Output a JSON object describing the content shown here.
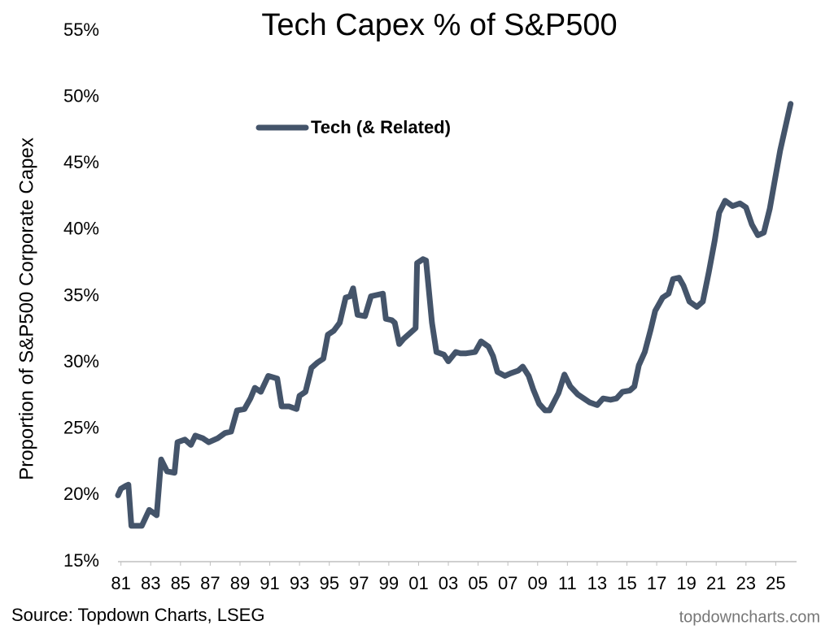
{
  "chart_data": {
    "type": "line",
    "title": "Tech Capex % of S&P500",
    "y_label": "Proportion of S&P500 Corporate Capex",
    "source": "Source: Topdown Charts, LSEG",
    "watermark": "topdowncharts.com",
    "legend_position": "upper left",
    "xlim": [
      1980.8,
      2026.4
    ],
    "ylim": [
      15,
      55
    ],
    "xticks": [
      {
        "value": 1981,
        "label": "81"
      },
      {
        "value": 1983,
        "label": "83"
      },
      {
        "value": 1985,
        "label": "85"
      },
      {
        "value": 1987,
        "label": "87"
      },
      {
        "value": 1989,
        "label": "89"
      },
      {
        "value": 1991,
        "label": "91"
      },
      {
        "value": 1993,
        "label": "93"
      },
      {
        "value": 1995,
        "label": "95"
      },
      {
        "value": 1997,
        "label": "97"
      },
      {
        "value": 1999,
        "label": "99"
      },
      {
        "value": 2001,
        "label": "01"
      },
      {
        "value": 2003,
        "label": "03"
      },
      {
        "value": 2005,
        "label": "05"
      },
      {
        "value": 2007,
        "label": "07"
      },
      {
        "value": 2009,
        "label": "09"
      },
      {
        "value": 2011,
        "label": "11"
      },
      {
        "value": 2013,
        "label": "13"
      },
      {
        "value": 2015,
        "label": "15"
      },
      {
        "value": 2017,
        "label": "17"
      },
      {
        "value": 2019,
        "label": "19"
      },
      {
        "value": 2021,
        "label": "21"
      },
      {
        "value": 2023,
        "label": "23"
      },
      {
        "value": 2025,
        "label": "25"
      }
    ],
    "yticks": [
      {
        "value": 15,
        "label": "15%"
      },
      {
        "value": 20,
        "label": "20%"
      },
      {
        "value": 25,
        "label": "25%"
      },
      {
        "value": 30,
        "label": "30%"
      },
      {
        "value": 35,
        "label": "35%"
      },
      {
        "value": 40,
        "label": "40%"
      },
      {
        "value": 45,
        "label": "45%"
      },
      {
        "value": 50,
        "label": "50%"
      },
      {
        "value": 55,
        "label": "55%"
      }
    ],
    "x": [
      1980.8,
      1981.0,
      1981.3,
      1981.5,
      1981.7,
      1982.4,
      1982.9,
      1983.4,
      1983.7,
      1984.1,
      1984.6,
      1984.8,
      1985.3,
      1985.7,
      1986.0,
      1986.5,
      1986.9,
      1987.5,
      1988.0,
      1988.4,
      1988.8,
      1989.3,
      1989.7,
      1990.0,
      1990.4,
      1990.9,
      1991.5,
      1991.8,
      1992.3,
      1992.8,
      1993.0,
      1993.4,
      1993.8,
      1994.2,
      1994.6,
      1994.9,
      1995.3,
      1995.7,
      1996.1,
      1996.4,
      1996.6,
      1996.9,
      1997.4,
      1997.8,
      1998.2,
      1998.6,
      1998.8,
      1999.2,
      1999.4,
      1999.7,
      2000.0,
      2000.4,
      2000.8,
      2000.9,
      2001.3,
      2001.5,
      2001.9,
      2002.2,
      2002.7,
      2003.0,
      2003.5,
      2003.8,
      2004.2,
      2004.8,
      2005.2,
      2005.7,
      2006.0,
      2006.3,
      2006.8,
      2007.2,
      2007.7,
      2008.0,
      2008.4,
      2008.7,
      2009.1,
      2009.5,
      2009.8,
      2010.4,
      2010.8,
      2011.2,
      2011.7,
      2012.1,
      2012.5,
      2013.0,
      2013.4,
      2013.9,
      2014.3,
      2014.7,
      2015.2,
      2015.5,
      2015.8,
      2016.2,
      2016.6,
      2016.9,
      2017.4,
      2017.8,
      2018.1,
      2018.5,
      2018.8,
      2019.2,
      2019.7,
      2020.1,
      2020.5,
      2020.9,
      2021.2,
      2021.6,
      2022.1,
      2022.6,
      2023.0,
      2023.4,
      2023.8,
      2024.2,
      2024.6,
      2024.9,
      2025.3,
      2025.7,
      2026.0
    ],
    "series": [
      {
        "name": "Tech (& Related)",
        "color": "#44546a",
        "values": [
          20.0,
          20.5,
          20.7,
          20.8,
          17.7,
          17.7,
          18.9,
          18.5,
          22.7,
          21.8,
          21.7,
          24.0,
          24.2,
          23.8,
          24.5,
          24.3,
          24.0,
          24.3,
          24.7,
          24.8,
          26.4,
          26.5,
          27.3,
          28.1,
          27.8,
          29.0,
          28.8,
          26.7,
          26.7,
          26.5,
          27.5,
          27.8,
          29.6,
          30.0,
          30.3,
          32.1,
          32.4,
          33.0,
          34.9,
          35.0,
          35.6,
          33.6,
          33.5,
          35.0,
          35.1,
          35.2,
          33.3,
          33.2,
          33.0,
          31.4,
          31.8,
          32.2,
          32.6,
          37.5,
          37.8,
          37.7,
          33.0,
          30.8,
          30.6,
          30.1,
          30.8,
          30.7,
          30.7,
          30.8,
          31.6,
          31.2,
          30.5,
          29.3,
          29.0,
          29.2,
          29.4,
          29.7,
          29.0,
          28.0,
          26.9,
          26.4,
          26.4,
          27.7,
          29.1,
          28.2,
          27.6,
          27.3,
          27.0,
          26.8,
          27.3,
          27.2,
          27.3,
          27.8,
          27.9,
          28.2,
          29.8,
          30.8,
          32.5,
          33.9,
          34.9,
          35.2,
          36.3,
          36.4,
          35.8,
          34.6,
          34.2,
          34.6,
          36.8,
          39.2,
          41.3,
          42.2,
          41.8,
          42.0,
          41.7,
          40.4,
          39.6,
          39.8,
          41.6,
          43.5,
          46.0,
          48.0,
          49.5
        ]
      }
    ]
  }
}
